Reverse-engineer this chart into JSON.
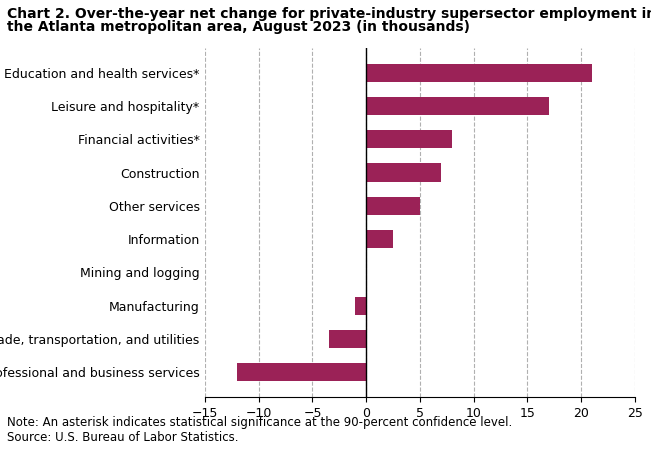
{
  "title_line1": "Chart 2. Over-the-year net change for private-industry supersector employment in",
  "title_line2": "the Atlanta metropolitan area, August 2023 (in thousands)",
  "categories": [
    "Professional and business services",
    "Trade, transportation, and utilities",
    "Manufacturing",
    "Mining and logging",
    "Information",
    "Other services",
    "Construction",
    "Financial activities*",
    "Leisure and hospitality*",
    "Education and health services*"
  ],
  "values": [
    -12.0,
    -3.5,
    -1.0,
    0.0,
    2.5,
    5.0,
    7.0,
    8.0,
    17.0,
    21.0
  ],
  "bar_color": "#9b2257",
  "xlim": [
    -15,
    25
  ],
  "xticks": [
    -15,
    -10,
    -5,
    0,
    5,
    10,
    15,
    20,
    25
  ],
  "note_line1": "Note: An asterisk indicates statistical significance at the 90-percent confidence level.",
  "note_line2": "Source: U.S. Bureau of Labor Statistics.",
  "grid_color": "#b0b0b0",
  "background_color": "#ffffff",
  "title_fontsize": 10,
  "label_fontsize": 9,
  "tick_fontsize": 9,
  "note_fontsize": 8.5
}
